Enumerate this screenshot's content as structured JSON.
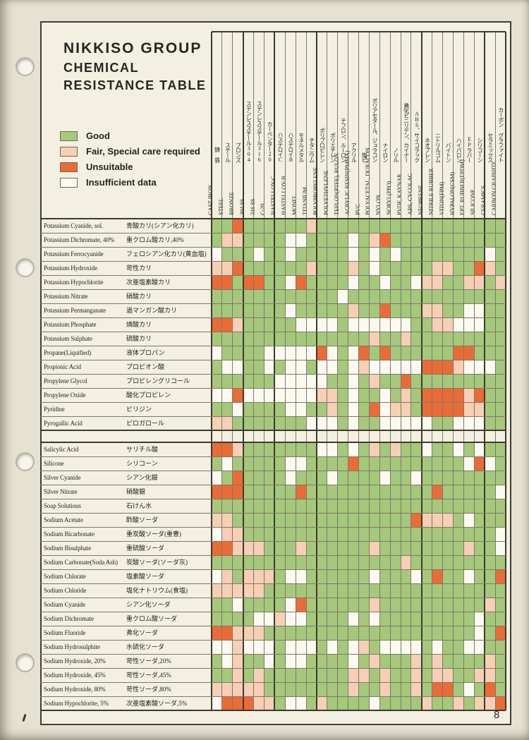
{
  "page": {
    "title_line1": "NIKKISO GROUP",
    "title_line2": "CHEMICAL",
    "title_line3": "RESISTANCE TABLE",
    "page_number": "8"
  },
  "legend": {
    "items": [
      {
        "key": "G",
        "label": "Good"
      },
      {
        "key": "F",
        "label": "Fair, Special care required"
      },
      {
        "key": "U",
        "label": "Unsuitable"
      },
      {
        "key": "W",
        "label": "Insufficient data"
      }
    ]
  },
  "colors": {
    "G": "#a5c87b",
    "F": "#f6cfb5",
    "U": "#eb6b37",
    "W": "#fbf9f0",
    "paper": "#f3f0e2",
    "thin_line": "#7b796b",
    "thick_line": "#3c3b30"
  },
  "columns": [
    {
      "en": "CAST IRON",
      "jp": "鋳 鉄"
    },
    {
      "en": "STEEL",
      "jp": "スチール"
    },
    {
      "en": "BRONZE",
      "jp": "ブロンズ"
    },
    {
      "en": "304 SS",
      "jp": "ステンレススチール304"
    },
    {
      "en": "316 SS",
      "jp": "ステンレススチール316"
    },
    {
      "en": "C-20",
      "jp": "カーペンター20"
    },
    {
      "en": "HASTELLOY-C",
      "jp": "ハステロイC"
    },
    {
      "en": "HASTELLOY-B",
      "jp": "ハステロイB"
    },
    {
      "en": "MONEL",
      "jp": "モネルメタル"
    },
    {
      "en": "TITANIUM",
      "jp": "チタニウム"
    },
    {
      "en": "POLYPROPYLENE",
      "jp": "ポリプロピレン"
    },
    {
      "en": "POLYETHYLENE",
      "jp": "ポリエチレン"
    },
    {
      "en": "TEFLON(PTFE), RULON",
      "jp": "テフロン、ルーロン"
    },
    {
      "en": "ACRYLIC RESIN(PMMA)",
      "jp": "アクリル"
    },
    {
      "en": "PVC",
      "jp": "塩ビ"
    },
    {
      "en": "POLYACETAL, DURACON",
      "jp": "ポリアセタール、ジュラコン"
    },
    {
      "en": "NYLON",
      "jp": "ナイロン"
    },
    {
      "en": "NORYL(PPO)",
      "jp": "ノリル"
    },
    {
      "en": "PVDF, KAYNAR",
      "jp": "弗化ビニリデン、カイナー"
    },
    {
      "en": "ABS, CYCOLAC",
      "jp": "ABS、サイコラック"
    },
    {
      "en": "NEOPRENE",
      "jp": "ネオプレン"
    },
    {
      "en": "NITRILE RUBBER",
      "jp": "ニトリルゴム"
    },
    {
      "en": "VITON(FPM)",
      "jp": "バイトン"
    },
    {
      "en": "HYPALON(CSM)",
      "jp": "ハイパロン"
    },
    {
      "en": "EPT. RUBBER(EPDM)",
      "jp": "EPラバー"
    },
    {
      "en": "SILICONE",
      "jp": "シリコーン"
    },
    {
      "en": "CERAMICS",
      "jp": "セラミックス"
    },
    {
      "en": "CARBON GRAPHITE",
      "jp": "カーボン グラファイト"
    }
  ],
  "group_boundaries": [
    0,
    3,
    6,
    10,
    20,
    26,
    28
  ],
  "sections": [
    {
      "rows": [
        {
          "en": "Potassium Cyanide, sol.",
          "jp": "青酸カリ(シアン化カリ)",
          "cells": "GGUGGGGGGFGGGGGGGGGGGGGGGGGG"
        },
        {
          "en": "Potassium Dichromate, 40%",
          "jp": "重クロム酸カリ,40%",
          "cells": "GFFGGGGWWGGGGWGFUGGGGGGGGGGG"
        },
        {
          "en": "Potassium Ferrocyanide",
          "jp": "フェロシアン化カリ(黄血塩)",
          "cells": "WGGGWGGWGGGGGWGWGWGGGGGGGGWG"
        },
        {
          "en": "Potassium Hydroxide",
          "jp": "苛性カリ",
          "cells": "FFUGGGGGGFGGGFGWGGGGGFFGGUFG"
        },
        {
          "en": "Potassium Hypochlorite",
          "jp": "次亜塩素酸カリ",
          "cells": "UUGUUGGWUGGGGWGGWGGWFFGGFFGF"
        },
        {
          "en": "Potassium Nitrate",
          "jp": "硝酸カリ",
          "cells": "GGGGGGGGGGGGWGGGGGGGGGGGGGGG"
        },
        {
          "en": "Potassium Permanganate",
          "jp": "過マンガン酸カリ",
          "cells": "GGGGGGGWGGGGGFGGUGGGFFGGWWGG"
        },
        {
          "en": "Potassium Phosphate",
          "jp": "燐酸カリ",
          "cells": "UUFGGGGGWWWWGWWWWWWGGFFWWWGG"
        },
        {
          "en": "Potassium Sulphate",
          "jp": "硫酸カリ",
          "cells": "GGGGGGGGGGGGGGGFGGFGGGGGGGGG"
        },
        {
          "en": "Propane(Liquified)",
          "jp": "液体プロパン",
          "cells": "WGGGGWWWWWUWGWUGUGGGGGGUUGGG"
        },
        {
          "en": "Propionic Acid",
          "jp": "プロピオン酸",
          "cells": "GWWGGWGWWGWWGWFWWWWWUUUFWWWG"
        },
        {
          "en": "Propylene Glycol",
          "jp": "プロピレングリコール",
          "cells": "GGGGGGWWWWWGGWGFGGUGGGGGGGGG"
        },
        {
          "en": "Propylene Oxide",
          "jp": "酸化プロピレン",
          "cells": "WWUWWWWWWWFFGWGGWGFGUUUUFUGG"
        },
        {
          "en": "Pyridine",
          "jp": "ピリジン",
          "cells": "GGWGGGGWWGGFGWGUWFFGUUUUFFGG"
        },
        {
          "en": "Pyrogallic Acid",
          "jp": "ピロガロール",
          "cells": "FFGGGGGGGWWWGWGGWWWWWGGWWWGG"
        }
      ]
    },
    {
      "rows": [
        {
          "en": "Salicylic Acid",
          "jp": "サリチル酸",
          "cells": "UUFGGGGGGGWWGWGFGFGGWGGWGWGG"
        },
        {
          "en": "Silicone",
          "jp": "シリコーン",
          "cells": "GWGGGGGWWGGGGUGGGGGGGGGGWUWG"
        },
        {
          "en": "Silver Cyanide",
          "jp": "シアン化銀",
          "cells": "WGUGGGGWGGGWGGGGWGGWGGGGGGGG"
        },
        {
          "en": "Silver Nitrate",
          "jp": "硝酸銀",
          "cells": "UUUGGGGGUGGGGGGGGGGGGUGGGGGW"
        },
        {
          "en": "Soap Solutious",
          "jp": "石けん水",
          "cells": "GGGGGGGGGGGGGGGGGGGGGGGGGGGG"
        },
        {
          "en": "Sodium Acetate",
          "jp": "酢酸ソーダ",
          "cells": "FFGGGGGGGGGGGGGGGGGUFFFGWGGG"
        },
        {
          "en": "Sodium Bicarbonate",
          "jp": "重炭酸ソーダ(重曹)",
          "cells": "WFFGGGGGGGGGGGGGGGGGGGGGGGGW"
        },
        {
          "en": "Sodium Bisulphate",
          "jp": "重硫酸ソーダ",
          "cells": "UUFFFGGGFGGGGGGFGGGGGGGGFGGW"
        },
        {
          "en": "Sodium Carbonate(Soda Ash)",
          "jp": "炭酸ソーダ(ソーダ灰)",
          "cells": "GGGGGGGGGGGGGGGGGGFGGGGGGGGG"
        },
        {
          "en": "Sodium Chlorate",
          "jp": "塩素酸ソーダ",
          "cells": "WFGFFFGWWGGGGGGWGGGWGUGGWGGU"
        },
        {
          "en": "Sodium Chloride",
          "jp": "塩化ナトリウム(食塩)",
          "cells": "FFFFFGGGGGGGGGGGGGGGGGGGGGGG"
        },
        {
          "en": "Sodium Cyanide",
          "jp": "シアン化ソーダ",
          "cells": "GGWGGGGWUGGGGGGFGGGGGGGGGGFG"
        },
        {
          "en": "Sodium Dichromate",
          "jp": "重クロム酸ソーダ",
          "cells": "GGGGWWFWWGGGGWGWGGGGGGGGGWGG"
        },
        {
          "en": "Sodium Fluoride",
          "jp": "弗化ソーダ",
          "cells": "UUFFFGGGGGGGGGGGGGGGGGGGGWGU"
        },
        {
          "en": "Sodium Hydrosulphite",
          "jp": "水硫化ソーダ",
          "cells": "WWFWWWGWWWGWGWFGWWWWGWGGWWGG"
        },
        {
          "en": "Sodium Hydroxide, 20%",
          "jp": "苛性ソーダ,20%",
          "cells": "GWFGGWGWWGGGGWGFGGGFGFGGGGFG"
        },
        {
          "en": "Sodium Hydroxide, 45%",
          "jp": "苛性ソーダ,45%",
          "cells": "GGFGFGGGGGGGGFFGFGGFGFFGGFFG"
        },
        {
          "en": "Sodium Hydroxide, 80%",
          "jp": "苛性ソーダ,80%",
          "cells": "FFFFFGGGGGGGGFGGFGGFGUUGWGUG"
        },
        {
          "en": "Sodium Hypochlorite, 5%",
          "jp": "次亜塩素酸ソーダ,5%",
          "cells": "WUUUFFGWWGFGGGGWGGGGFGGFGFFU"
        }
      ]
    }
  ]
}
